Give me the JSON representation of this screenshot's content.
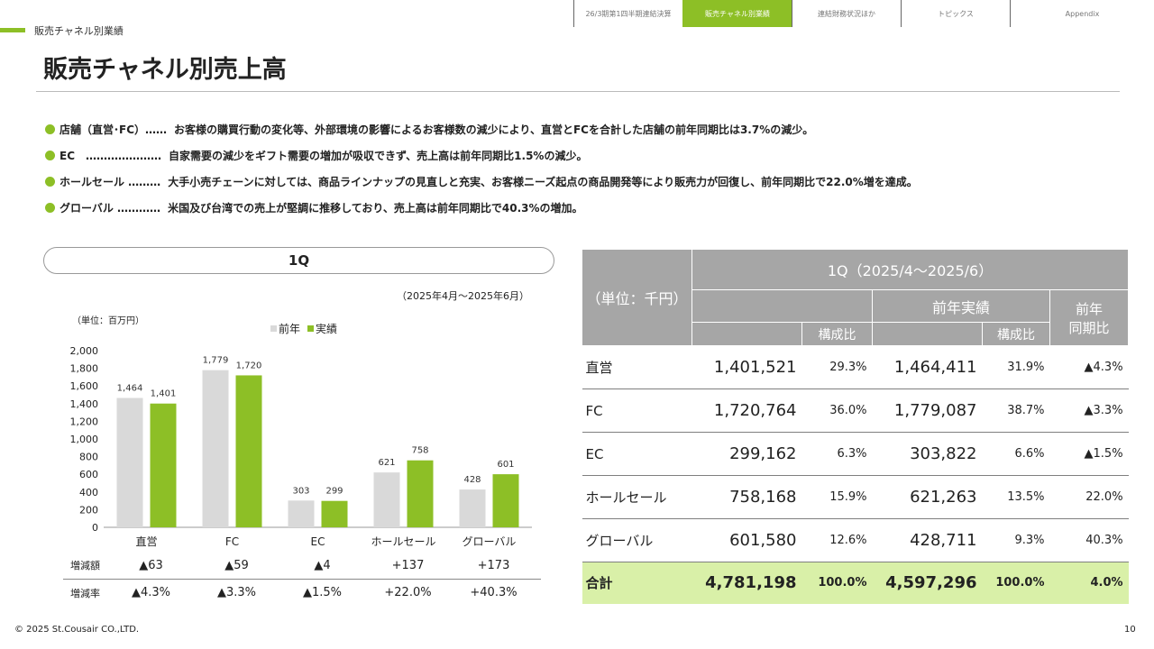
{
  "nav": {
    "tabs": [
      {
        "label": "26/3期第1四半期連結決算",
        "active": false
      },
      {
        "label": "販売チャネル別業績",
        "active": true
      },
      {
        "label": "連結財務状況ほか",
        "active": false
      },
      {
        "label": "トピックス",
        "active": false
      },
      {
        "label": "Appendix",
        "active": false
      }
    ]
  },
  "section_label": "販売チャネル別業績",
  "title": "販売チャネル別売上高",
  "bullets": [
    {
      "lead": "店舗（直営･FC）……",
      "text": "お客様の購買行動の変化等、外部環境の影響によるお客様数の減少により、直営とFCを合計した店舗の前年同期比は3.7%の減少。"
    },
    {
      "lead": "EC　…………………",
      "text": "自家需要の減少をギフト需要の増加が吸収できず、売上高は前年同期比1.5%の減少。"
    },
    {
      "lead": "ホールセール ………",
      "text": "大手小売チェーンに対しては、商品ラインナップの見直しと充実、お客様ニーズ起点の商品開発等により販売力が回復し、前年同期比で22.0%増を達成。"
    },
    {
      "lead": "グローバル …………",
      "text": "米国及び台湾での売上が堅調に推移しており、売上高は前年同期比で40.3%の増加。"
    }
  ],
  "chart_section": {
    "pill_label": "1Q",
    "period": "（2025年4月～2025年6月）",
    "unit": "（単位：百万円）"
  },
  "chart_data": {
    "type": "bar",
    "categories": [
      "直営",
      "FC",
      "EC",
      "ホールセール",
      "グローバル"
    ],
    "series": [
      {
        "name": "前年",
        "color": "#d9d9d9",
        "values": [
          1464,
          1779,
          303,
          621,
          428
        ]
      },
      {
        "name": "実績",
        "color": "#8dbf26",
        "values": [
          1401,
          1720,
          299,
          758,
          601
        ]
      }
    ],
    "yticks": [
      "0",
      "200",
      "400",
      "600",
      "800",
      "1,000",
      "1,200",
      "1,400",
      "1,600",
      "1,800",
      "2,000"
    ],
    "ylim": [
      0,
      2000
    ],
    "data_labels": [
      [
        "1,464",
        "1,779",
        "303",
        "621",
        "428"
      ],
      [
        "1,401",
        "1,720",
        "299",
        "758",
        "601"
      ]
    ],
    "legend_position": "top"
  },
  "diff": {
    "amount_label": "増減額",
    "amount": [
      "▲63",
      "▲59",
      "▲4",
      "+137",
      "+173"
    ],
    "rate_label": "増減率",
    "rate": [
      "▲4.3%",
      "▲3.3%",
      "▲1.5%",
      "+22.0%",
      "+40.3%"
    ]
  },
  "table": {
    "unit": "（単位：千円）",
    "period": "1Q（2025/4～2025/6）",
    "prev_header": "前年実績",
    "ratio_header": "構成比",
    "yoy_header": "前年\n同期比",
    "rows": [
      {
        "name": "直営",
        "cur": "1,401,521",
        "cur_ratio": "29.3%",
        "prev": "1,464,411",
        "prev_ratio": "31.9%",
        "yoy": "▲4.3%"
      },
      {
        "name": "FC",
        "cur": "1,720,764",
        "cur_ratio": "36.0%",
        "prev": "1,779,087",
        "prev_ratio": "38.7%",
        "yoy": "▲3.3%"
      },
      {
        "name": "EC",
        "cur": "299,162",
        "cur_ratio": "6.3%",
        "prev": "303,822",
        "prev_ratio": "6.6%",
        "yoy": "▲1.5%"
      },
      {
        "name": "ホールセール",
        "cur": "758,168",
        "cur_ratio": "15.9%",
        "prev": "621,263",
        "prev_ratio": "13.5%",
        "yoy": "22.0%"
      },
      {
        "name": "グローバル",
        "cur": "601,580",
        "cur_ratio": "12.6%",
        "prev": "428,711",
        "prev_ratio": "9.3%",
        "yoy": "40.3%"
      }
    ],
    "total": {
      "name": "合計",
      "cur": "4,781,198",
      "cur_ratio": "100.0%",
      "prev": "4,597,296",
      "prev_ratio": "100.0%",
      "yoy": "4.0%"
    }
  },
  "footer": "© 2025 St.Cousair CO.,LTD.",
  "page_number": "10"
}
